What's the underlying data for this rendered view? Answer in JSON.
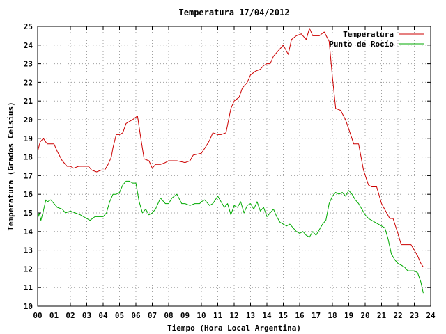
{
  "chart_data": {
    "type": "line",
    "title": "Temperatura 17/04/2012",
    "xlabel": "Tiempo (Hora Local Argentina)",
    "ylabel": "Temperatura (Grados Celsius)",
    "xlim": [
      0,
      24
    ],
    "ylim": [
      10,
      25
    ],
    "x_ticks": [
      "00",
      "01",
      "02",
      "03",
      "04",
      "05",
      "06",
      "07",
      "08",
      "09",
      "10",
      "11",
      "12",
      "13",
      "14",
      "15",
      "16",
      "17",
      "18",
      "19",
      "20",
      "21",
      "22",
      "23",
      "24"
    ],
    "y_ticks": [
      "10",
      "11",
      "12",
      "13",
      "14",
      "15",
      "16",
      "17",
      "18",
      "19",
      "20",
      "21",
      "22",
      "23",
      "24",
      "25"
    ],
    "grid": true,
    "legend_position": "top-right",
    "series": [
      {
        "name": "Temperatura",
        "color": "#cc0000",
        "x": [
          0.0,
          0.15,
          0.35,
          0.5,
          0.6,
          1.0,
          1.2,
          1.5,
          1.8,
          2.0,
          2.2,
          2.5,
          2.8,
          3.1,
          3.3,
          3.6,
          3.9,
          4.1,
          4.3,
          4.5,
          4.6,
          4.8,
          5.0,
          5.2,
          5.4,
          5.6,
          5.8,
          5.95,
          6.1,
          6.3,
          6.5,
          6.8,
          7.0,
          7.2,
          7.5,
          7.8,
          8.0,
          8.5,
          9.0,
          9.3,
          9.5,
          10.0,
          10.3,
          10.5,
          10.7,
          11.0,
          11.2,
          11.5,
          11.8,
          12.0,
          12.3,
          12.5,
          12.8,
          13.0,
          13.3,
          13.6,
          13.8,
          14.0,
          14.2,
          14.4,
          14.6,
          14.9,
          15.0,
          15.3,
          15.5,
          15.8,
          16.1,
          16.2,
          16.4,
          16.6,
          16.8,
          17.0,
          17.2,
          17.5,
          17.8,
          18.0,
          18.2,
          18.5,
          18.8,
          19.0,
          19.3,
          19.6,
          19.9,
          20.2,
          20.4,
          20.7,
          21.0,
          21.5,
          21.7,
          22.0,
          22.2,
          22.5,
          22.8,
          23.0,
          23.2,
          23.4,
          23.55
        ],
        "y": [
          18.3,
          18.8,
          19.0,
          18.8,
          18.7,
          18.7,
          18.3,
          17.8,
          17.5,
          17.5,
          17.4,
          17.5,
          17.5,
          17.5,
          17.3,
          17.2,
          17.3,
          17.3,
          17.6,
          18.0,
          18.5,
          19.2,
          19.2,
          19.3,
          19.8,
          19.9,
          20.0,
          20.1,
          20.2,
          19.0,
          17.9,
          17.8,
          17.4,
          17.6,
          17.6,
          17.7,
          17.8,
          17.8,
          17.7,
          17.8,
          18.1,
          18.2,
          18.6,
          18.9,
          19.3,
          19.2,
          19.2,
          19.3,
          20.6,
          21.0,
          21.2,
          21.7,
          22.0,
          22.4,
          22.6,
          22.7,
          22.9,
          23.0,
          23.0,
          23.4,
          23.6,
          23.9,
          24.0,
          23.5,
          24.3,
          24.5,
          24.6,
          24.5,
          24.3,
          24.9,
          24.5,
          24.5,
          24.5,
          24.7,
          24.2,
          22.3,
          20.6,
          20.5,
          20.0,
          19.5,
          18.7,
          18.7,
          17.3,
          16.5,
          16.4,
          16.4,
          15.5,
          14.7,
          14.7,
          13.9,
          13.3,
          13.3,
          13.3,
          13.0,
          12.7,
          12.3,
          12.1
        ]
      },
      {
        "name": "Punto de Rocío",
        "color": "#00aa00",
        "x": [
          0.0,
          0.1,
          0.2,
          0.35,
          0.5,
          0.6,
          0.8,
          1.0,
          1.2,
          1.5,
          1.7,
          2.0,
          2.3,
          2.6,
          3.0,
          3.2,
          3.5,
          3.8,
          4.0,
          4.2,
          4.4,
          4.6,
          4.8,
          5.0,
          5.2,
          5.4,
          5.6,
          5.8,
          6.0,
          6.2,
          6.4,
          6.6,
          6.8,
          7.0,
          7.2,
          7.5,
          7.8,
          8.0,
          8.2,
          8.5,
          8.8,
          9.0,
          9.3,
          9.6,
          9.9,
          10.0,
          10.2,
          10.5,
          10.7,
          11.0,
          11.2,
          11.4,
          11.6,
          11.8,
          12.0,
          12.2,
          12.4,
          12.6,
          12.8,
          13.0,
          13.2,
          13.4,
          13.6,
          13.8,
          14.0,
          14.2,
          14.4,
          14.6,
          14.8,
          15.0,
          15.2,
          15.4,
          15.6,
          15.8,
          16.0,
          16.2,
          16.4,
          16.6,
          16.8,
          17.0,
          17.2,
          17.4,
          17.6,
          17.8,
          18.0,
          18.2,
          18.4,
          18.6,
          18.8,
          19.0,
          19.2,
          19.4,
          19.6,
          19.8,
          20.0,
          20.2,
          20.4,
          20.6,
          20.8,
          21.0,
          21.2,
          21.4,
          21.6,
          21.8,
          22.0,
          22.2,
          22.4,
          22.6,
          22.8,
          23.0,
          23.2,
          23.4,
          23.55
        ],
        "y": [
          14.7,
          15.0,
          14.6,
          15.1,
          15.7,
          15.6,
          15.7,
          15.5,
          15.3,
          15.2,
          15.0,
          15.1,
          15.0,
          14.9,
          14.7,
          14.6,
          14.8,
          14.8,
          14.8,
          15.0,
          15.6,
          16.0,
          16.0,
          16.1,
          16.5,
          16.7,
          16.7,
          16.6,
          16.6,
          15.6,
          15.0,
          15.2,
          14.9,
          15.0,
          15.2,
          15.8,
          15.5,
          15.5,
          15.8,
          16.0,
          15.5,
          15.5,
          15.4,
          15.5,
          15.5,
          15.6,
          15.7,
          15.4,
          15.5,
          15.9,
          15.6,
          15.3,
          15.5,
          14.9,
          15.4,
          15.3,
          15.6,
          15.0,
          15.4,
          15.5,
          15.2,
          15.6,
          15.1,
          15.3,
          14.8,
          15.0,
          15.2,
          14.8,
          14.5,
          14.4,
          14.3,
          14.4,
          14.2,
          14.0,
          13.9,
          14.0,
          13.8,
          13.7,
          14.0,
          13.8,
          14.1,
          14.4,
          14.6,
          15.5,
          15.9,
          16.1,
          16.0,
          16.1,
          15.9,
          16.2,
          16.0,
          15.7,
          15.5,
          15.2,
          14.9,
          14.7,
          14.6,
          14.5,
          14.4,
          14.3,
          14.2,
          13.6,
          12.8,
          12.5,
          12.3,
          12.2,
          12.1,
          11.9,
          11.9,
          11.9,
          11.8,
          11.3,
          10.7
        ]
      }
    ]
  }
}
